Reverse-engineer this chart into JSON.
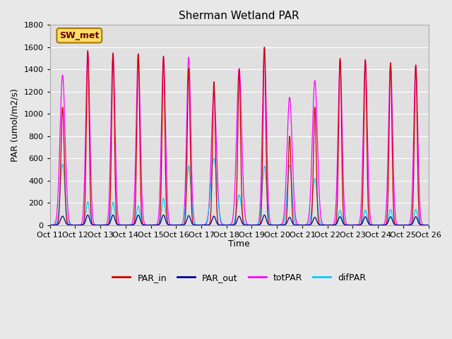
{
  "title": "Sherman Wetland PAR",
  "ylabel": "PAR (umol/m2/s)",
  "xlabel": "Time",
  "ylim": [
    0,
    1800
  ],
  "yticks": [
    0,
    200,
    400,
    600,
    800,
    1000,
    1200,
    1400,
    1600,
    1800
  ],
  "fig_bg": "#e8e8e8",
  "ax_bg": "#e0e0e0",
  "legend_label": "SW_met",
  "colors": {
    "PAR_in": "#cc0000",
    "PAR_out": "#000099",
    "totPAR": "#ff00ff",
    "difPAR": "#00ccff"
  },
  "xtick_labels": [
    "Oct 11",
    "Oct 12",
    "Oct 13",
    "Oct 14",
    "Oct 15",
    "Oct 16",
    "Oct 17",
    "Oct 18",
    "Oct 19",
    "Oct 20",
    "Oct 21",
    "Oct 22",
    "Oct 23",
    "Oct 24",
    "Oct 25",
    "Oct 26"
  ],
  "par_in_peaks": [
    1060,
    1570,
    1540,
    1540,
    1520,
    1410,
    1290,
    1400,
    1600,
    800,
    1060,
    1500,
    1490,
    1460,
    1440
  ],
  "tot_peaks": [
    1350,
    1560,
    1550,
    1540,
    1510,
    1510,
    1200,
    1410,
    1600,
    1150,
    1300,
    1490,
    1480,
    1460,
    1440
  ],
  "par_out_peaks": [
    80,
    90,
    90,
    90,
    90,
    85,
    80,
    80,
    90,
    70,
    70,
    75,
    75,
    75,
    75
  ],
  "dif_peaks": [
    550,
    210,
    205,
    170,
    240,
    530,
    600,
    270,
    530,
    540,
    420,
    130,
    135,
    140,
    140
  ],
  "par_in_sigma": [
    0.065,
    0.055,
    0.055,
    0.055,
    0.055,
    0.055,
    0.055,
    0.055,
    0.055,
    0.055,
    0.055,
    0.055,
    0.055,
    0.055,
    0.055
  ],
  "tot_sigma": [
    0.1,
    0.08,
    0.08,
    0.08,
    0.08,
    0.08,
    0.1,
    0.1,
    0.08,
    0.1,
    0.1,
    0.08,
    0.08,
    0.08,
    0.08
  ],
  "dif_sigma": [
    0.09,
    0.07,
    0.07,
    0.07,
    0.07,
    0.09,
    0.12,
    0.09,
    0.09,
    0.09,
    0.09,
    0.07,
    0.07,
    0.07,
    0.07
  ],
  "par_out_sigma": [
    0.08,
    0.07,
    0.07,
    0.07,
    0.07,
    0.07,
    0.07,
    0.07,
    0.07,
    0.07,
    0.07,
    0.07,
    0.07,
    0.07,
    0.07
  ]
}
